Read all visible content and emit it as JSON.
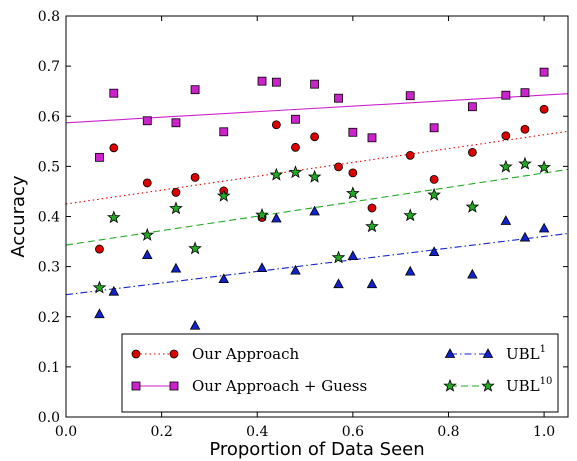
{
  "chart_data": {
    "type": "scatter",
    "xlabel": "Proportion of Data Seen",
    "ylabel": "Accuracy",
    "xlim": [
      0.0,
      1.05
    ],
    "ylim": [
      0.0,
      0.8
    ],
    "xticks": [
      "0.0",
      "0.2",
      "0.4",
      "0.6",
      "0.8",
      "1.0"
    ],
    "yticks": [
      "0.0",
      "0.1",
      "0.2",
      "0.3",
      "0.4",
      "0.5",
      "0.6",
      "0.7",
      "0.8"
    ],
    "grid": false,
    "legend_position": "bottom",
    "series": [
      {
        "name": "Our Approach",
        "marker": "circle",
        "color": "#dd0000",
        "line_style": "dotted",
        "x": [
          0.07,
          0.1,
          0.17,
          0.23,
          0.27,
          0.33,
          0.41,
          0.44,
          0.48,
          0.52,
          0.57,
          0.6,
          0.64,
          0.72,
          0.77,
          0.85,
          0.92,
          0.96,
          1.0
        ],
        "y": [
          0.335,
          0.537,
          0.467,
          0.448,
          0.478,
          0.451,
          0.398,
          0.583,
          0.538,
          0.559,
          0.499,
          0.487,
          0.417,
          0.522,
          0.474,
          0.528,
          0.561,
          0.574,
          0.614
        ],
        "trend": [
          0.425,
          0.57
        ]
      },
      {
        "name": "Our Approach + Guess",
        "marker": "square",
        "color": "#cc22cc",
        "line_style": "solid",
        "x": [
          0.07,
          0.1,
          0.17,
          0.23,
          0.27,
          0.33,
          0.41,
          0.44,
          0.48,
          0.52,
          0.57,
          0.6,
          0.64,
          0.72,
          0.77,
          0.85,
          0.92,
          0.96,
          1.0
        ],
        "y": [
          0.518,
          0.646,
          0.591,
          0.587,
          0.653,
          0.569,
          0.67,
          0.668,
          0.594,
          0.664,
          0.636,
          0.568,
          0.557,
          0.641,
          0.577,
          0.619,
          0.642,
          0.647,
          0.688
        ],
        "trend": [
          0.587,
          0.645
        ]
      },
      {
        "name": "UBL",
        "name_sup": "1",
        "marker": "triangle",
        "color": "#1122cc",
        "line_style": "dashdot",
        "x": [
          0.07,
          0.1,
          0.17,
          0.23,
          0.27,
          0.33,
          0.41,
          0.44,
          0.48,
          0.52,
          0.57,
          0.6,
          0.64,
          0.72,
          0.77,
          0.85,
          0.92,
          0.96,
          1.0
        ],
        "y": [
          0.205,
          0.25,
          0.323,
          0.296,
          0.182,
          0.275,
          0.297,
          0.396,
          0.292,
          0.41,
          0.265,
          0.321,
          0.265,
          0.29,
          0.329,
          0.284,
          0.391,
          0.358,
          0.376
        ],
        "trend": [
          0.244,
          0.366
        ]
      },
      {
        "name": "UBL",
        "name_sup": "10",
        "marker": "star",
        "color": "#22aa22",
        "line_style": "dashed",
        "x": [
          0.07,
          0.1,
          0.17,
          0.23,
          0.27,
          0.33,
          0.41,
          0.44,
          0.48,
          0.52,
          0.57,
          0.6,
          0.64,
          0.72,
          0.77,
          0.85,
          0.92,
          0.96,
          1.0
        ],
        "y": [
          0.258,
          0.398,
          0.363,
          0.416,
          0.336,
          0.441,
          0.403,
          0.483,
          0.488,
          0.479,
          0.318,
          0.446,
          0.38,
          0.402,
          0.443,
          0.419,
          0.499,
          0.505,
          0.498
        ],
        "trend": [
          0.343,
          0.494
        ]
      }
    ]
  }
}
